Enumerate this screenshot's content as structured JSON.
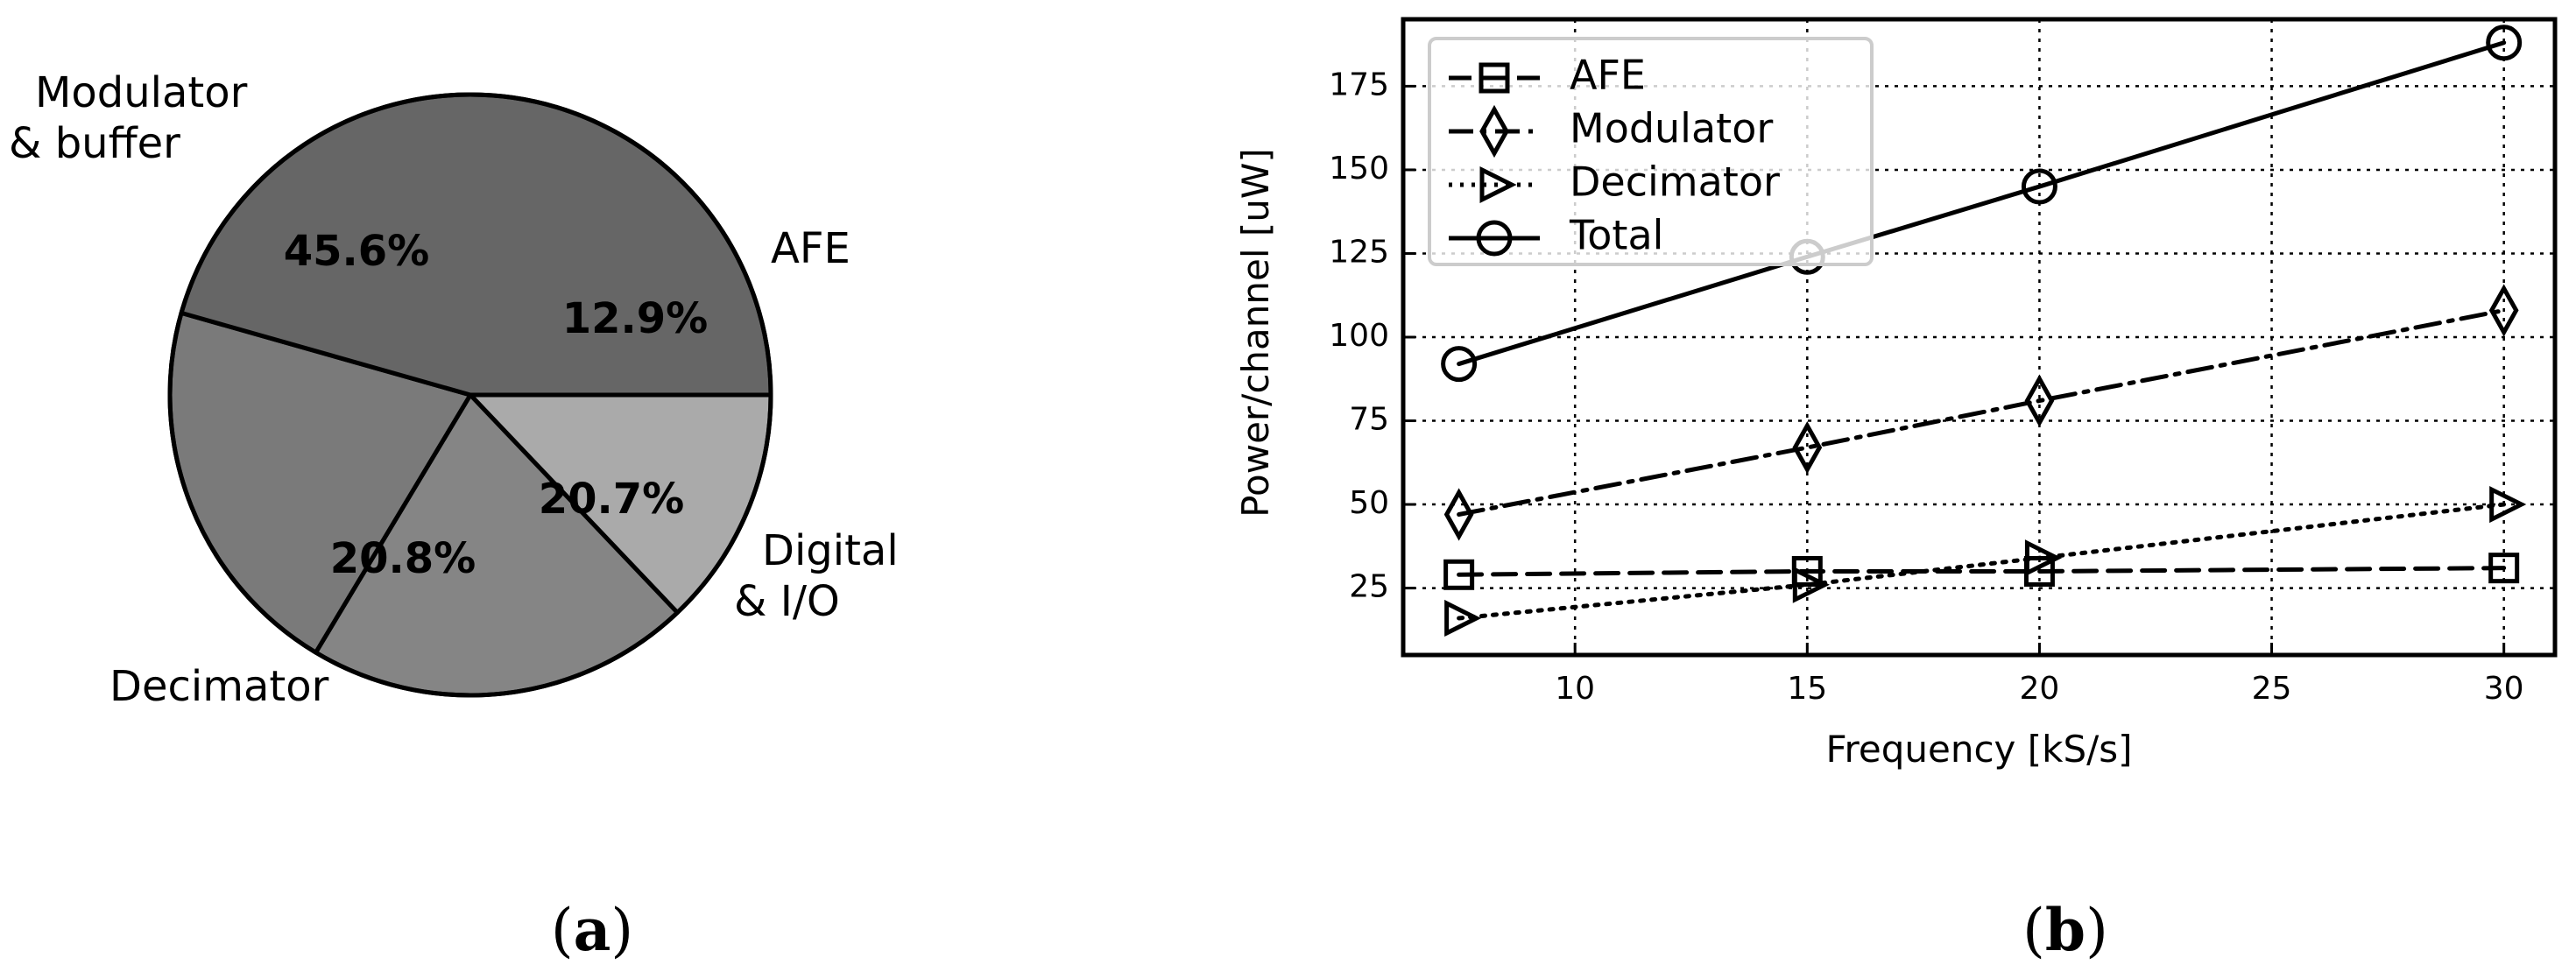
{
  "chart_data": [
    {
      "type": "pie",
      "caption_letter": "a",
      "slices": [
        {
          "label": "AFE",
          "pct_label": "12.9%",
          "value": 12.9,
          "color": "#aaaaaa"
        },
        {
          "label": "Digital & I/O",
          "label_lines": [
            "Digital",
            "& I/O"
          ],
          "pct_label": "20.7%",
          "value": 20.7,
          "color": "#858585"
        },
        {
          "label": "Decimator",
          "label_lines": [
            "Decimator"
          ],
          "pct_label": "20.8%",
          "value": 20.8,
          "color": "#7a7a7a"
        },
        {
          "label": "Modulator & buffer",
          "label_lines": [
            "Modulator",
            "& buffer"
          ],
          "pct_label": "45.6%",
          "value": 45.6,
          "color": "#666666"
        }
      ],
      "start_angle_deg": 0,
      "direction": "clockwise"
    },
    {
      "type": "line",
      "caption_letter": "b",
      "xlabel": "Frequency [kS/s]",
      "ylabel": "Power/channel [uW]",
      "xlim": [
        6.3,
        31.1
      ],
      "ylim": [
        5,
        195
      ],
      "xticks": [
        10,
        15,
        20,
        25,
        30
      ],
      "yticks": [
        25,
        50,
        75,
        100,
        125,
        150,
        175
      ],
      "grid": true,
      "legend_position": "upper-left",
      "series": [
        {
          "name": "AFE",
          "x": [
            7.5,
            15,
            20,
            30
          ],
          "y": [
            29,
            30,
            30,
            31
          ],
          "marker": "square",
          "linestyle": "dashed"
        },
        {
          "name": "Modulator",
          "x": [
            7.5,
            15,
            20,
            30
          ],
          "y": [
            47,
            67,
            81,
            108
          ],
          "marker": "diamond",
          "linestyle": "dashdot"
        },
        {
          "name": "Decimator",
          "x": [
            7.5,
            15,
            20,
            30
          ],
          "y": [
            16,
            26,
            34,
            50
          ],
          "marker": "triangle-right",
          "linestyle": "dotted"
        },
        {
          "name": "Total",
          "x": [
            7.5,
            15,
            20,
            30
          ],
          "y": [
            92,
            124,
            145,
            188
          ],
          "marker": "circle",
          "linestyle": "solid"
        }
      ]
    }
  ]
}
